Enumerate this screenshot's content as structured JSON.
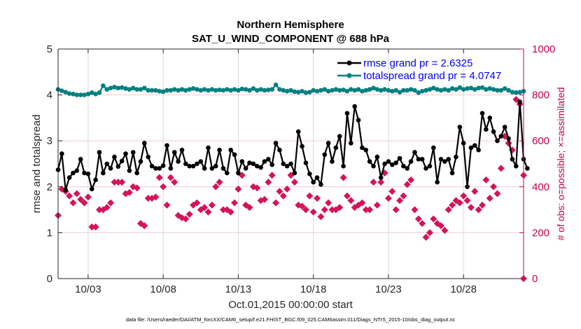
{
  "chart_data": {
    "type": "line",
    "title": [
      "Northern Hemisphere",
      "SAT_U_WIND_COMPONENT @ 688 hPa"
    ],
    "xlabel": "Oct.01,2015 00:00:00 start",
    "ylabel": "rmse and totalspread",
    "y2label": "# of obs: o=possible; ×=assimilated",
    "xlim": [
      1,
      32
    ],
    "ylim": [
      0,
      5
    ],
    "y2lim": [
      0,
      1000
    ],
    "x_ticks": [
      {
        "v": 3,
        "label": "10/03"
      },
      {
        "v": 8,
        "label": "10/08"
      },
      {
        "v": 13,
        "label": "10/13"
      },
      {
        "v": 18,
        "label": "10/18"
      },
      {
        "v": 23,
        "label": "10/23"
      },
      {
        "v": 28,
        "label": "10/28"
      }
    ],
    "y_ticks": [
      0,
      1,
      2,
      3,
      4,
      5
    ],
    "y2_ticks": [
      0,
      200,
      400,
      600,
      800,
      1000
    ],
    "grid": true,
    "legend_position": "top-right",
    "colors": {
      "rmse": "#000000",
      "totalspread": "#008080",
      "obs": "#d4145a",
      "legend_text": "#0000ff",
      "right_axis": "#c8004e"
    },
    "series": [
      {
        "name": "rmse grand pr = 2.6325",
        "axis": "left",
        "start_day": 1.0,
        "step_days": 0.25,
        "values": [
          2.37,
          2.72,
          1.93,
          2.2,
          2.3,
          2.35,
          2.6,
          2.3,
          2.28,
          1.95,
          2.15,
          2.75,
          2.3,
          2.5,
          2.4,
          2.65,
          2.44,
          2.56,
          2.72,
          2.35,
          2.75,
          2.3,
          2.55,
          2.95,
          2.65,
          2.45,
          2.4,
          2.4,
          2.46,
          2.9,
          2.4,
          2.75,
          2.55,
          2.8,
          2.5,
          2.45,
          2.45,
          2.5,
          2.55,
          2.4,
          2.85,
          2.4,
          2.45,
          2.8,
          2.4,
          2.3,
          2.8,
          2.7,
          2.3,
          2.55,
          2.4,
          2.52,
          2.5,
          2.45,
          2.42,
          2.55,
          2.6,
          2.48,
          2.95,
          2.8,
          2.5,
          2.45,
          2.5,
          2.3,
          3.2,
          2.88,
          2.52,
          2.28,
          2.1,
          2.2,
          2.05,
          2.7,
          2.95,
          2.55,
          2.85,
          3.1,
          2.45,
          3.6,
          2.95,
          3.75,
          3.45,
          2.85,
          2.8,
          2.55,
          2.45,
          2.65,
          2.2,
          2.5,
          2.55,
          2.48,
          2.52,
          2.62,
          2.45,
          2.4,
          2.55,
          2.75,
          2.6,
          2.6,
          2.4,
          2.45,
          2.85,
          2.1,
          2.6,
          2.55,
          2.6,
          2.3,
          2.65,
          3.3,
          2.95,
          2.0,
          2.85,
          2.9,
          2.8,
          3.6,
          3.25,
          3.5,
          3.2,
          3.0,
          3.1,
          3.3,
          3.05,
          2.6,
          2.45,
          3.85,
          2.6,
          2.4
        ],
        "marker": "circle"
      },
      {
        "name": "totalspread grand pr = 4.0747",
        "axis": "left",
        "start_day": 1.0,
        "step_days": 0.25,
        "values": [
          4.12,
          4.09,
          4.06,
          4.03,
          4.02,
          4.0,
          4.0,
          4.0,
          4.02,
          4.05,
          4.02,
          4.05,
          4.2,
          4.12,
          4.15,
          4.17,
          4.15,
          4.16,
          4.14,
          4.12,
          4.15,
          4.12,
          4.12,
          4.15,
          4.1,
          4.1,
          4.1,
          4.08,
          4.07,
          4.1,
          4.1,
          4.12,
          4.1,
          4.12,
          4.1,
          4.12,
          4.14,
          4.12,
          4.1,
          4.12,
          4.1,
          4.12,
          4.1,
          4.11,
          4.1,
          4.12,
          4.1,
          4.12,
          4.1,
          4.13,
          4.12,
          4.1,
          4.14,
          4.1,
          4.12,
          4.1,
          4.11,
          4.12,
          4.22,
          4.12,
          4.1,
          4.08,
          4.1,
          4.07,
          4.06,
          4.08,
          4.05,
          4.06,
          4.1,
          4.08,
          4.1,
          4.12,
          4.08,
          4.1,
          4.12,
          4.1,
          4.11,
          4.08,
          4.12,
          4.1,
          4.12,
          4.08,
          4.1,
          4.12,
          4.15,
          4.12,
          4.1,
          4.12,
          4.1,
          4.08,
          4.1,
          4.06,
          4.1,
          4.1,
          4.12,
          4.1,
          4.05,
          4.08,
          4.1,
          4.12,
          4.15,
          4.12,
          4.1,
          4.12,
          4.1,
          4.14,
          4.12,
          4.16,
          4.12,
          4.14,
          4.15,
          4.12,
          4.15,
          4.16,
          4.12,
          4.14,
          4.12,
          4.1,
          4.1,
          4.14,
          4.1,
          4.06,
          4.05,
          4.06,
          4.08
        ],
        "marker": "circle"
      },
      {
        "name": "# of obs assimilated",
        "axis": "right",
        "start_day": 1.0,
        "step_days": 0.25,
        "values": [
          275,
          390,
          380,
          360,
          330,
          370,
          345,
          330,
          355,
          225,
          225,
          300,
          300,
          310,
          330,
          420,
          420,
          420,
          370,
          375,
          400,
          395,
          240,
          230,
          350,
          350,
          355,
          440,
          400,
          320,
          440,
          420,
          275,
          265,
          260,
          280,
          320,
          330,
          300,
          310,
          290,
          320,
          400,
          420,
          300,
          300,
          290,
          330,
          390,
          450,
          320,
          310,
          400,
          395,
          340,
          345,
          420,
          450,
          330,
          380,
          360,
          390,
          450,
          420,
          320,
          315,
          300,
          360,
          290,
          350,
          270,
          300,
          330,
          300,
          300,
          310,
          440,
          360,
          340,
          310,
          320,
          330,
          300,
          300,
          420,
          320,
          420,
          460,
          350,
          380,
          300,
          340,
          360,
          410,
          430,
          300,
          260,
          240,
          180,
          200,
          260,
          240,
          230,
          210,
          300,
          320,
          340,
          330,
          360,
          340,
          310,
          380,
          300,
          320,
          430,
          350,
          400,
          370,
          480,
          620,
          590,
          560,
          780,
          760,
          450,
          410,
          380,
          330,
          340,
          650,
          500,
          480,
          400,
          440,
          460,
          430,
          400,
          600,
          350
        ],
        "marker": "x"
      },
      {
        "name": "# of obs possible",
        "axis": "right",
        "start_day": 1.0,
        "step_days": 0.25,
        "values_note": "overlaps assimilated count; shown only at final point",
        "values": [
          0
        ]
      }
    ]
  }
}
